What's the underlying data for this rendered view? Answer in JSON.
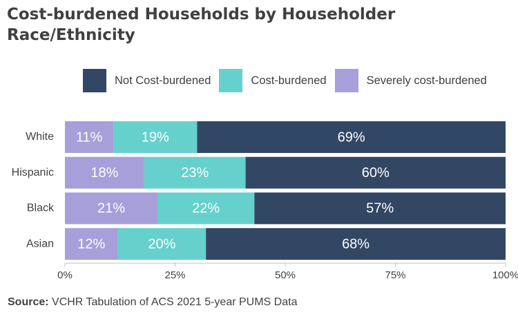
{
  "title": "Cost-burdened Households by Householder Race/Ethnicity",
  "source_label": "Source:",
  "source_text": " VCHR Tabulation of ACS 2021 5-year PUMS Data",
  "colors": {
    "not_cost_burdened": "#324764",
    "cost_burdened": "#66d0cc",
    "severely_cost_burdened": "#a69fd9",
    "text": "#404040",
    "bar_label": "#ffffff",
    "axis": "#bfbfbf"
  },
  "chart_data": {
    "type": "bar",
    "orientation": "horizontal",
    "stacked": true,
    "title": "Cost-burdened Households by Householder Race/Ethnicity",
    "categories": [
      "White",
      "Hispanic",
      "Black",
      "Asian"
    ],
    "series": [
      {
        "name": "Severely cost-burdened",
        "values": [
          11,
          18,
          21,
          12
        ],
        "labels": [
          "11%",
          "18%",
          "21%",
          "12%"
        ],
        "color": "#a69fd9"
      },
      {
        "name": "Cost-burdened",
        "values": [
          19,
          23,
          22,
          20
        ],
        "labels": [
          "19%",
          "23%",
          "22%",
          "20%"
        ],
        "color": "#66d0cc"
      },
      {
        "name": "Not Cost-burdened",
        "values": [
          69,
          60,
          57,
          68
        ],
        "labels": [
          "69%",
          "60%",
          "57%",
          "68%"
        ],
        "color": "#324764"
      }
    ],
    "legend": {
      "placement": "top",
      "order": [
        "Not Cost-burdened",
        "Cost-burdened",
        "Severely cost-burdened"
      ]
    },
    "xlim": [
      0,
      100
    ],
    "xticks": [
      0,
      25,
      50,
      75,
      100
    ],
    "xtick_labels": [
      "0%",
      "25%",
      "50%",
      "75%",
      "100%"
    ],
    "grid": false
  }
}
